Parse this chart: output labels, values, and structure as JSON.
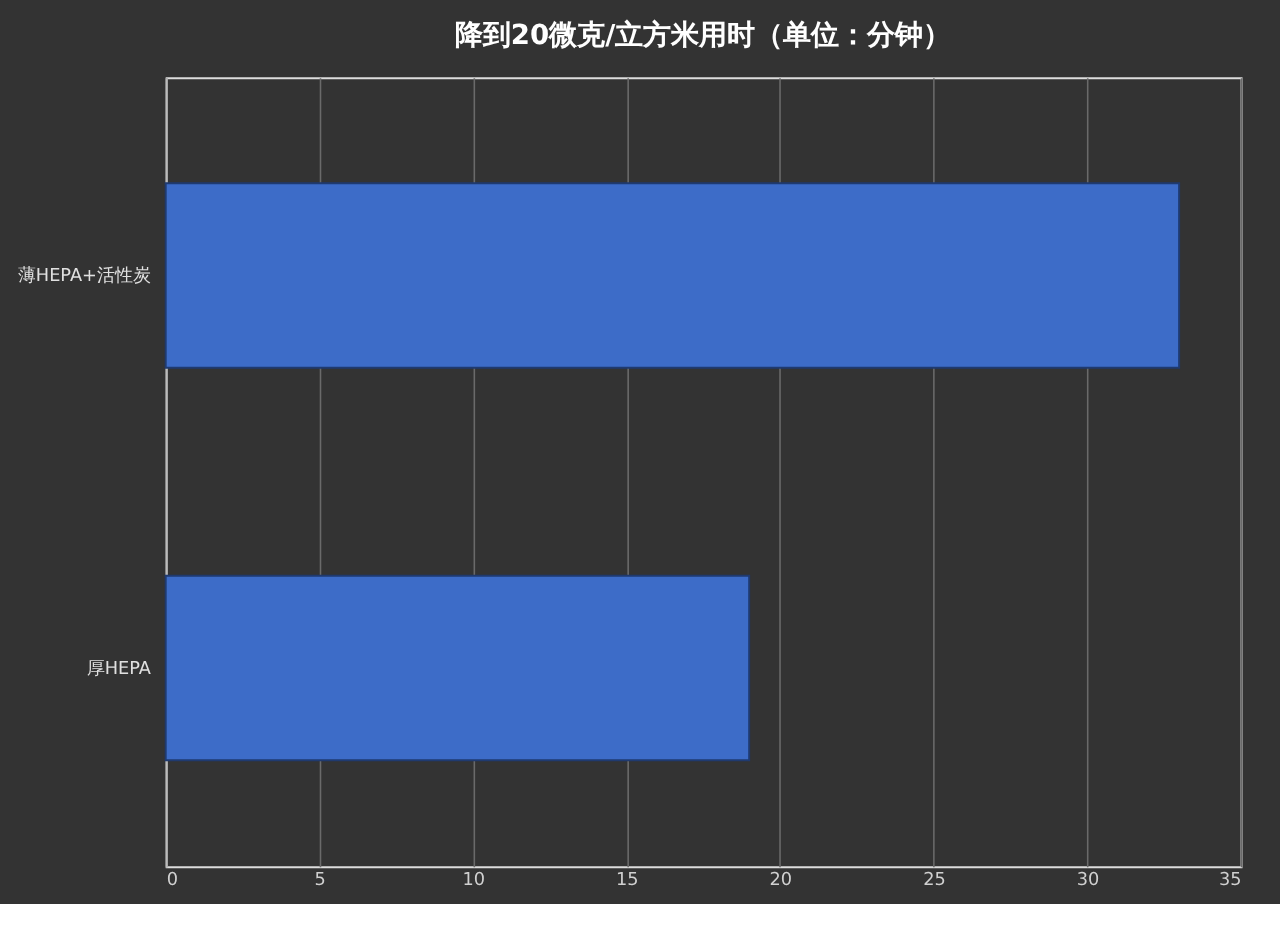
{
  "chart_data": {
    "type": "bar",
    "orientation": "horizontal",
    "title": "降到20微克/立方米用时（单位：分钟）",
    "categories": [
      "薄HEPA+活性炭",
      "厚HEPA"
    ],
    "values": [
      33,
      19
    ],
    "color": "#3d6cc8",
    "xlim": [
      0,
      35
    ],
    "xticks": [
      0,
      5,
      10,
      15,
      20,
      25,
      30,
      35
    ],
    "grid": "x"
  }
}
